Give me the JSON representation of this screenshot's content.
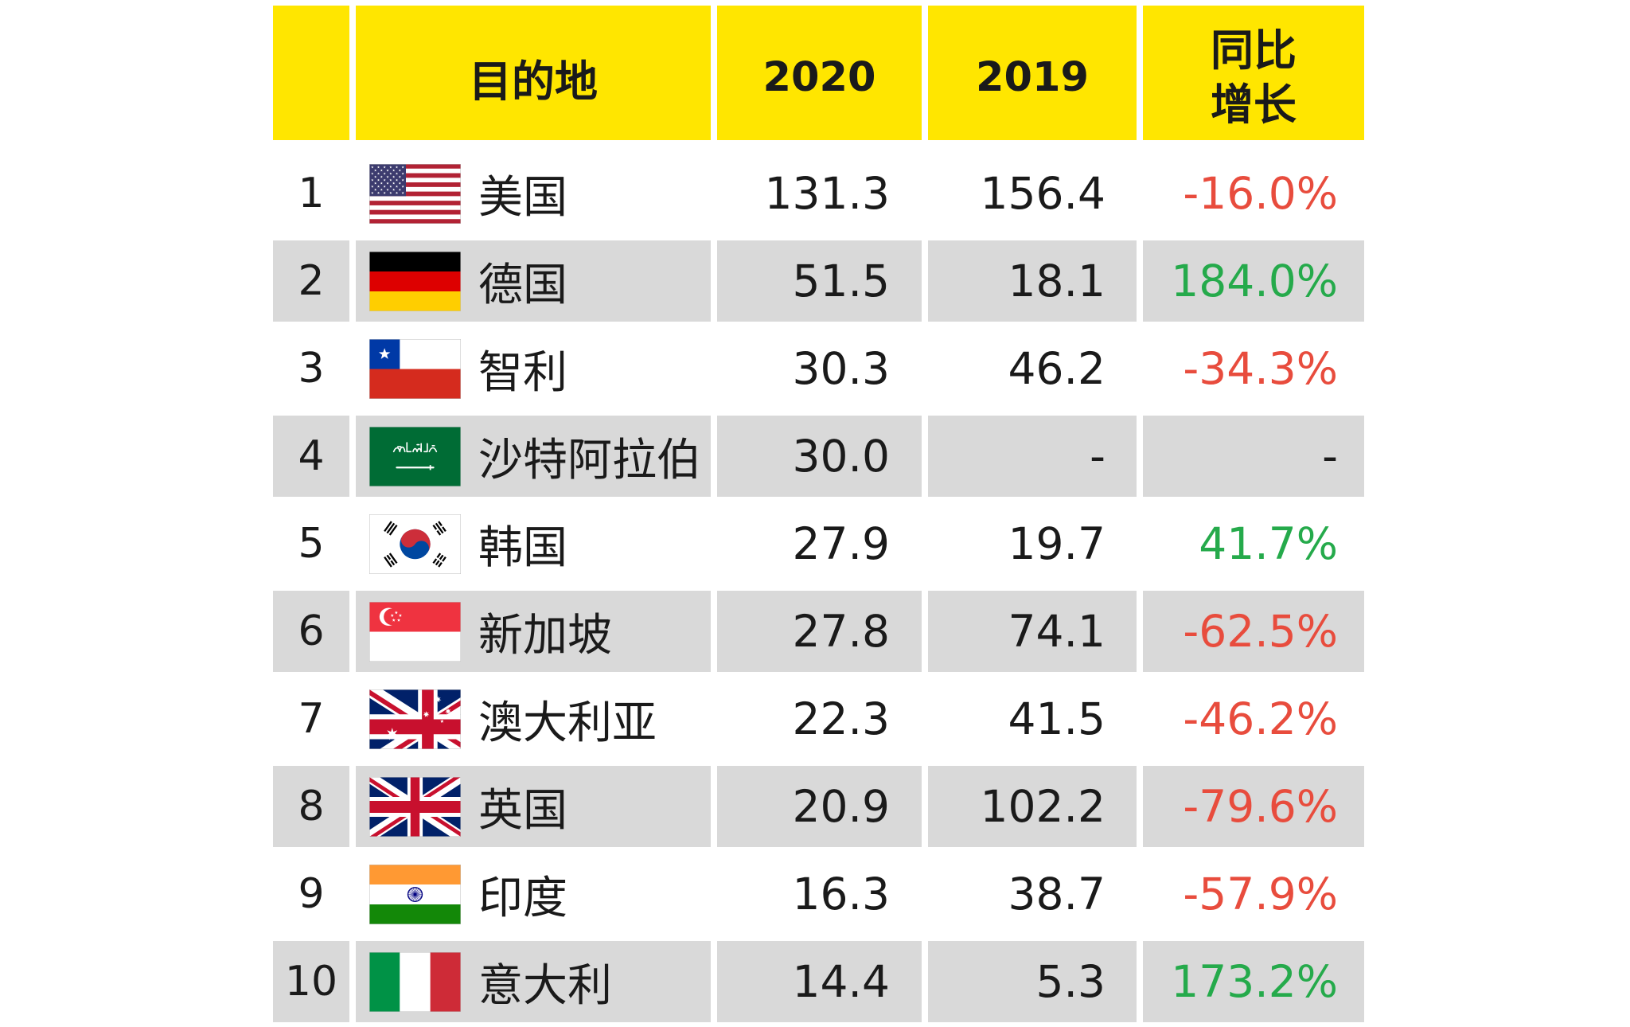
{
  "chart_data": {
    "type": "table",
    "header": {
      "destination": "目的地",
      "year_2020": "2020",
      "year_2019": "2019",
      "growth": [
        "同比",
        "增长"
      ]
    },
    "rows": [
      {
        "rank": "1",
        "flag": "united-states-flag-icon",
        "destination": "美国",
        "value_2020": "131.3",
        "value_2019": "156.4",
        "growth": "-16.0%"
      },
      {
        "rank": "2",
        "flag": "germany-flag-icon",
        "destination": "德国",
        "value_2020": "51.5",
        "value_2019": "18.1",
        "growth": "184.0%"
      },
      {
        "rank": "3",
        "flag": "chile-flag-icon",
        "destination": "智利",
        "value_2020": "30.3",
        "value_2019": "46.2",
        "growth": "-34.3%"
      },
      {
        "rank": "4",
        "flag": "saudi-arabia-flag-icon",
        "destination": "沙特阿拉伯",
        "value_2020": "30.0",
        "value_2019": "-",
        "growth": "-"
      },
      {
        "rank": "5",
        "flag": "south-korea-flag-icon",
        "destination": "韩国",
        "value_2020": "27.9",
        "value_2019": "19.7",
        "growth": "41.7%"
      },
      {
        "rank": "6",
        "flag": "singapore-flag-icon",
        "destination": "新加坡",
        "value_2020": "27.8",
        "value_2019": "74.1",
        "growth": "-62.5%"
      },
      {
        "rank": "7",
        "flag": "australia-flag-icon",
        "destination": "澳大利亚",
        "value_2020": "22.3",
        "value_2019": "41.5",
        "growth": "-46.2%"
      },
      {
        "rank": "8",
        "flag": "united-kingdom-flag-icon",
        "destination": "英国",
        "value_2020": "20.9",
        "value_2019": "102.2",
        "growth": "-79.6%"
      },
      {
        "rank": "9",
        "flag": "india-flag-icon",
        "destination": "印度",
        "value_2020": "16.3",
        "value_2019": "38.7",
        "growth": "-57.9%"
      },
      {
        "rank": "10",
        "flag": "italy-flag-icon",
        "destination": "意大利",
        "value_2020": "14.4",
        "value_2019": "5.3",
        "growth": "173.2%"
      }
    ]
  },
  "colors": {
    "header_bg": "#FFE600",
    "stripe_bg": "#D9D9D9",
    "text": "#1A1A1A",
    "negative": "#E84C3D",
    "positive": "#25AA4B"
  }
}
